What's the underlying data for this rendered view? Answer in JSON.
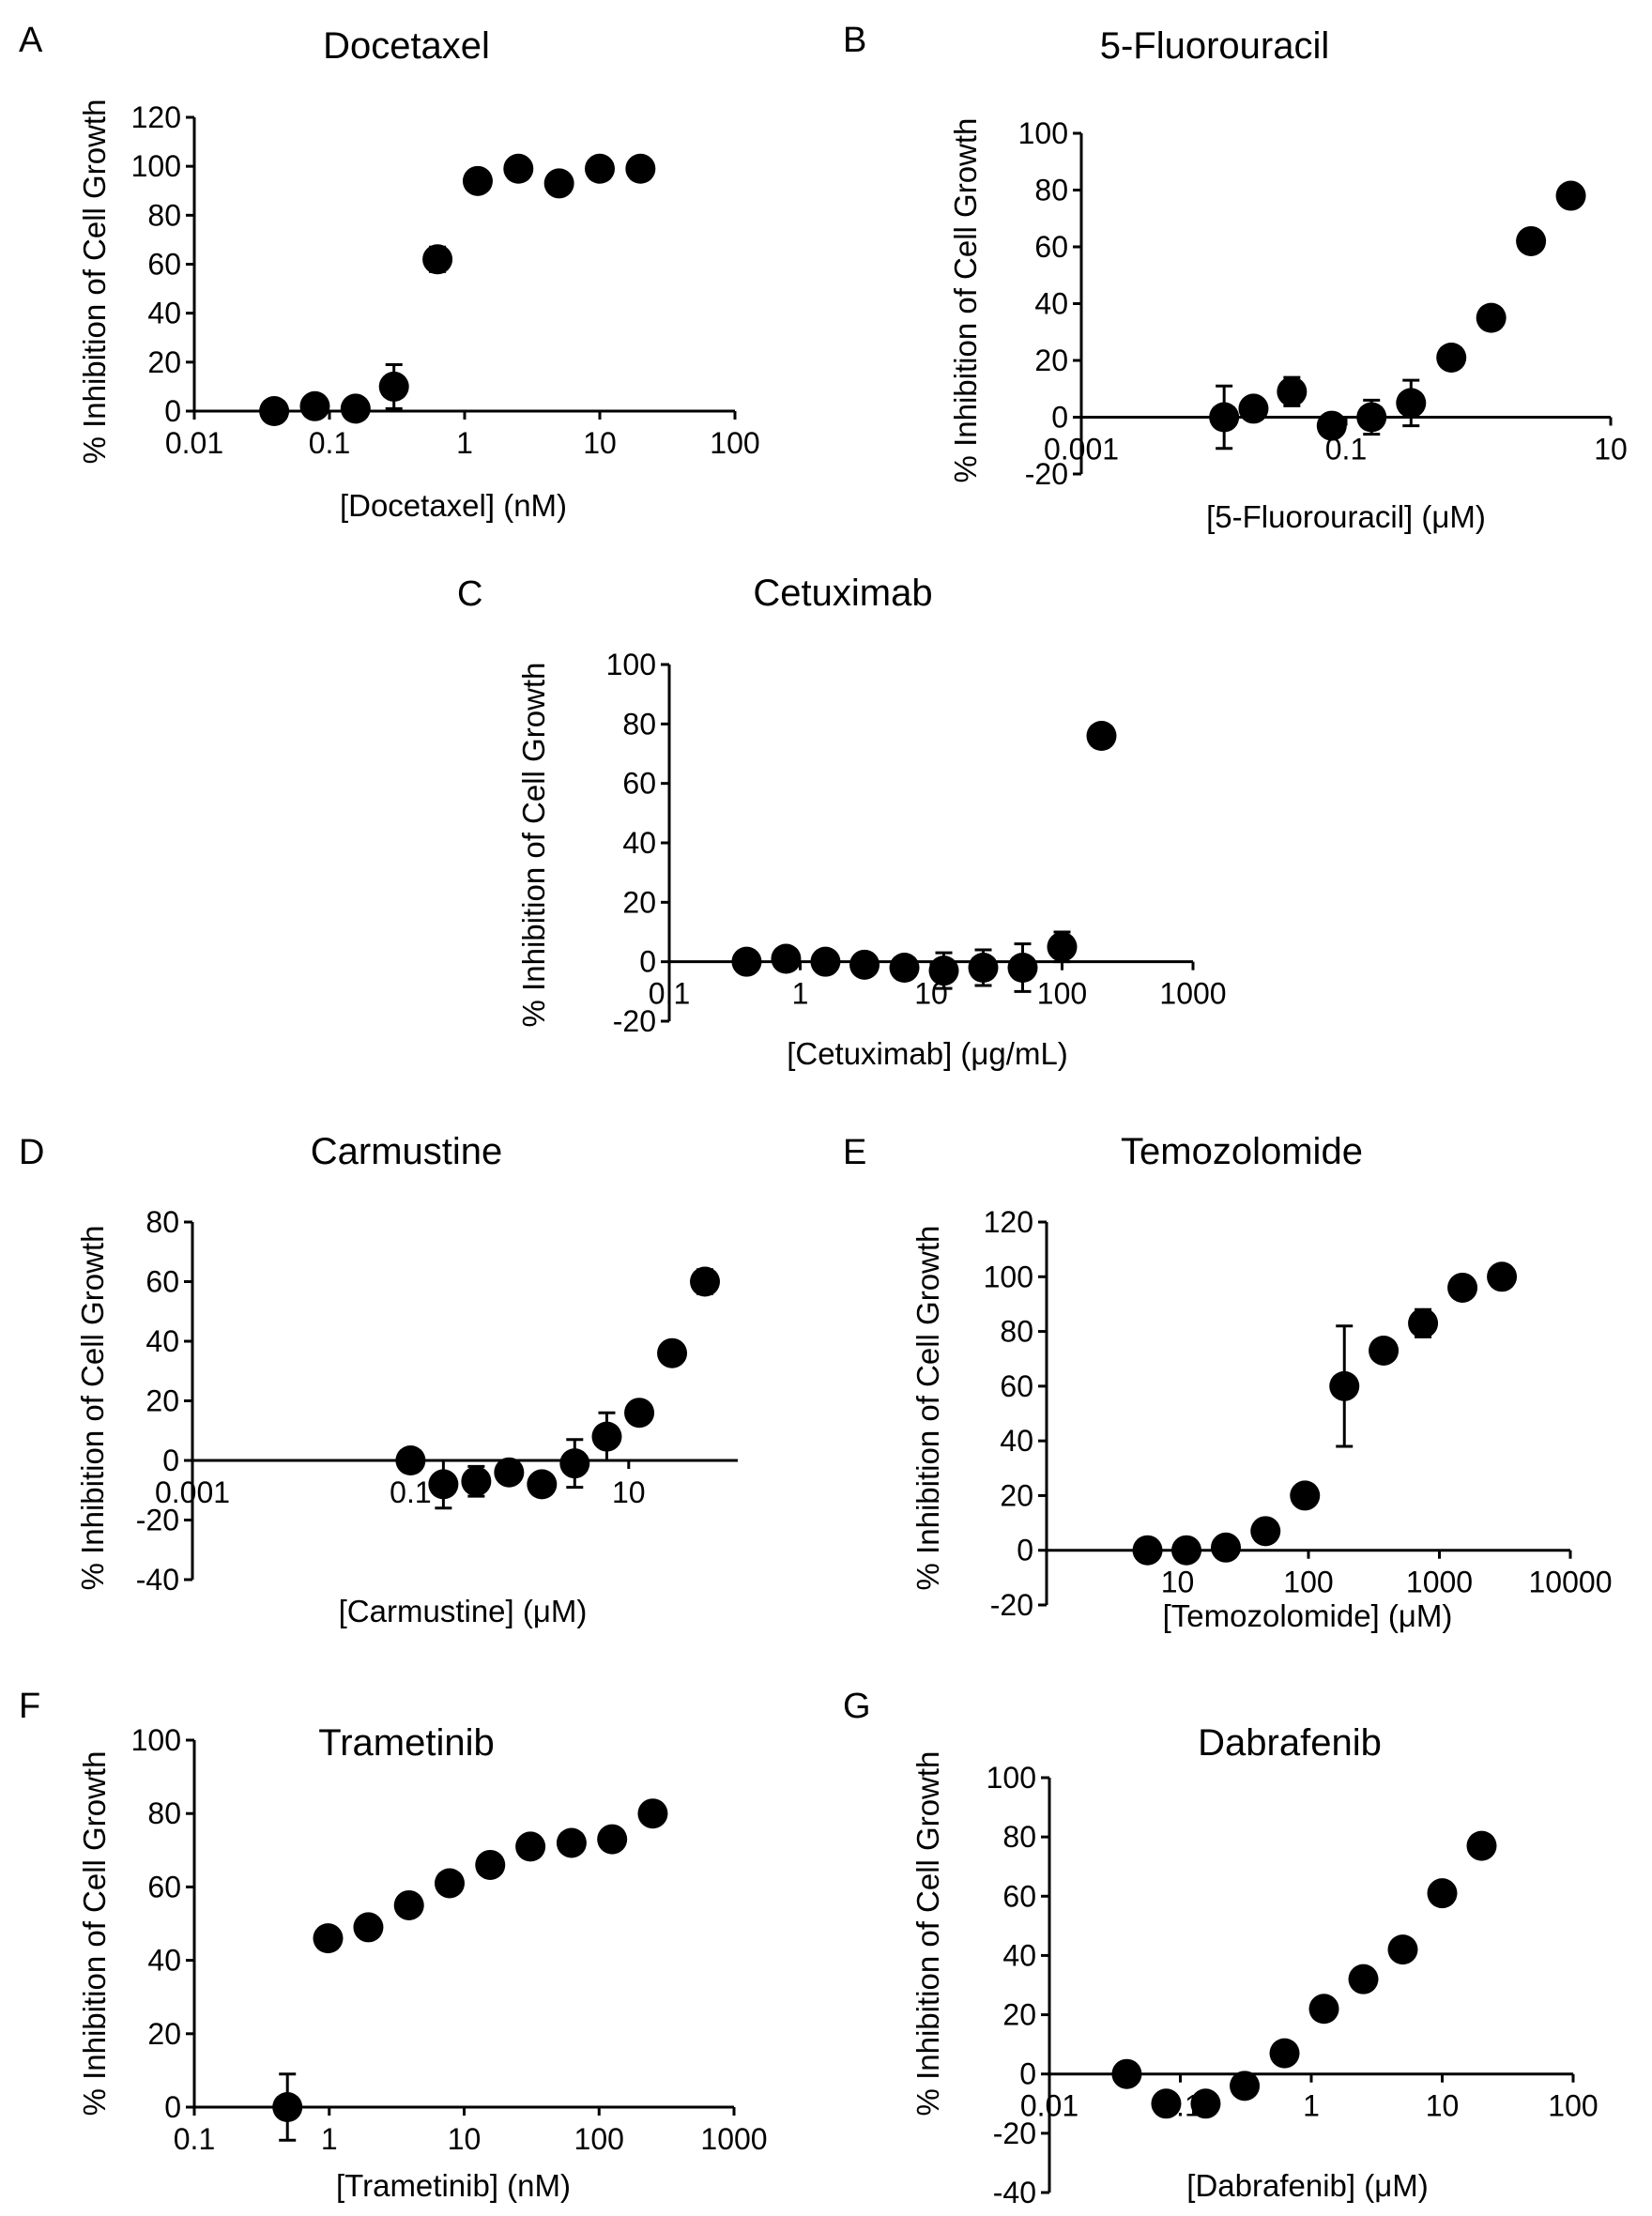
{
  "chart_data": [
    {
      "panel": "A",
      "type": "scatter",
      "title": "Docetaxel",
      "xlabel": "[Docetaxel] (nM)",
      "ylabel": "% Inhibition of Cell Growth",
      "xscale": "log",
      "xlim": [
        0.01,
        100
      ],
      "ylim": [
        0,
        120
      ],
      "xticks": [
        0.01,
        0.1,
        1,
        10,
        100
      ],
      "xtick_labels": [
        "0.01",
        "0.1",
        "1",
        "10",
        "100"
      ],
      "yticks": [
        0,
        20,
        40,
        60,
        80,
        100,
        120
      ],
      "x_axis_at_y": 0,
      "y_axis_at_x": 0.01,
      "grid": false,
      "points": [
        {
          "x": 0.039,
          "y": 0,
          "err": 0
        },
        {
          "x": 0.078,
          "y": 2,
          "err": 4
        },
        {
          "x": 0.156,
          "y": 1,
          "err": 4
        },
        {
          "x": 0.3,
          "y": 10,
          "err": 9
        },
        {
          "x": 0.63,
          "y": 62,
          "err": 5
        },
        {
          "x": 1.25,
          "y": 94,
          "err": 0
        },
        {
          "x": 2.5,
          "y": 99,
          "err": 0
        },
        {
          "x": 5,
          "y": 93,
          "err": 0
        },
        {
          "x": 10,
          "y": 99,
          "err": 0
        },
        {
          "x": 20,
          "y": 99,
          "err": 0
        }
      ]
    },
    {
      "panel": "B",
      "type": "scatter",
      "title": "5-Fluorouracil",
      "xlabel": "[5-Fluorouracil] (μM)",
      "ylabel": "% Inhibition of Cell Growth",
      "xscale": "log",
      "xlim": [
        0.001,
        10
      ],
      "ylim": [
        -20,
        100
      ],
      "xticks": [
        0.001,
        0.1,
        10
      ],
      "xtick_labels": [
        "0.001",
        "0.1",
        "10"
      ],
      "yticks": [
        -20,
        0,
        20,
        40,
        60,
        80,
        100
      ],
      "x_axis_at_y": 0,
      "y_axis_at_x": 0.001,
      "grid": false,
      "points": [
        {
          "x": 0.012,
          "y": 0,
          "err": 11
        },
        {
          "x": 0.02,
          "y": 3,
          "err": 0
        },
        {
          "x": 0.039,
          "y": 9,
          "err": 5
        },
        {
          "x": 0.078,
          "y": -3,
          "err": 0
        },
        {
          "x": 0.156,
          "y": 0,
          "err": 6
        },
        {
          "x": 0.31,
          "y": 5,
          "err": 8
        },
        {
          "x": 0.625,
          "y": 21,
          "err": 0
        },
        {
          "x": 1.25,
          "y": 35,
          "err": 0
        },
        {
          "x": 2.5,
          "y": 62,
          "err": 0
        },
        {
          "x": 5,
          "y": 78,
          "err": 0
        }
      ]
    },
    {
      "panel": "C",
      "type": "scatter",
      "title": "Cetuximab",
      "xlabel": "[Cetuximab] (μg/mL)",
      "ylabel": "% Inhibition of Cell Growth",
      "xscale": "log",
      "xlim": [
        0.1,
        1000
      ],
      "ylim": [
        -20,
        100
      ],
      "xticks": [
        0.1,
        1,
        10,
        100,
        1000
      ],
      "xtick_labels": [
        "0.1",
        "1",
        "10",
        "100",
        "1000"
      ],
      "yticks": [
        -20,
        0,
        20,
        40,
        60,
        80,
        100
      ],
      "x_axis_at_y": 0,
      "y_axis_at_x": 0.1,
      "grid": false,
      "points": [
        {
          "x": 0.39,
          "y": 0,
          "err": 0
        },
        {
          "x": 0.78,
          "y": 1,
          "err": 0
        },
        {
          "x": 1.56,
          "y": 0,
          "err": 0
        },
        {
          "x": 3.1,
          "y": -1,
          "err": 0
        },
        {
          "x": 6.25,
          "y": -2,
          "err": 0
        },
        {
          "x": 12.5,
          "y": -3,
          "err": 6
        },
        {
          "x": 25,
          "y": -2,
          "err": 6
        },
        {
          "x": 50,
          "y": -2,
          "err": 8
        },
        {
          "x": 100,
          "y": 5,
          "err": 5
        },
        {
          "x": 200,
          "y": 76,
          "err": 0
        }
      ]
    },
    {
      "panel": "D",
      "type": "scatter",
      "title": "Carmustine",
      "xlabel": "[Carmustine] (μM)",
      "ylabel": "% Inhibition of Cell Growth",
      "xscale": "log",
      "xlim": [
        0.001,
        100
      ],
      "ylim": [
        -40,
        80
      ],
      "xticks": [
        0.001,
        0.1,
        10
      ],
      "xtick_labels": [
        "0.001",
        "0.1",
        "10"
      ],
      "yticks": [
        -40,
        -20,
        0,
        20,
        40,
        60,
        80
      ],
      "x_axis_at_y": 0,
      "y_axis_at_x": 0.001,
      "grid": false,
      "points": [
        {
          "x": 0.1,
          "y": 0,
          "err": 0
        },
        {
          "x": 0.2,
          "y": -8,
          "err": 8
        },
        {
          "x": 0.4,
          "y": -7,
          "err": 5
        },
        {
          "x": 0.8,
          "y": -4,
          "err": 0
        },
        {
          "x": 1.6,
          "y": -8,
          "err": 0
        },
        {
          "x": 3.2,
          "y": -1,
          "err": 8
        },
        {
          "x": 6.3,
          "y": 8,
          "err": 8
        },
        {
          "x": 12.5,
          "y": 16,
          "err": 0
        },
        {
          "x": 25,
          "y": 36,
          "err": 0
        },
        {
          "x": 50,
          "y": 60,
          "err": 4
        }
      ]
    },
    {
      "panel": "E",
      "type": "scatter",
      "title": "Temozolomide",
      "xlabel": "[Temozolomide] (μM)",
      "ylabel": "% Inhibition of Cell Growth",
      "xscale": "log",
      "xlim": [
        1,
        10000
      ],
      "ylim": [
        -20,
        120
      ],
      "xticks": [
        1,
        10,
        100,
        1000,
        10000
      ],
      "xtick_labels": [
        "",
        "10",
        "100",
        "1000",
        "10000"
      ],
      "yticks": [
        -20,
        0,
        20,
        40,
        60,
        80,
        100,
        120
      ],
      "x_axis_at_y": 0,
      "y_axis_at_x": 1,
      "grid": false,
      "points": [
        {
          "x": 5.9,
          "y": 0,
          "err": 0
        },
        {
          "x": 11.7,
          "y": 0,
          "err": 0
        },
        {
          "x": 23.4,
          "y": 1,
          "err": 0
        },
        {
          "x": 47,
          "y": 7,
          "err": 0
        },
        {
          "x": 94,
          "y": 20,
          "err": 0
        },
        {
          "x": 188,
          "y": 60,
          "err": 22
        },
        {
          "x": 375,
          "y": 73,
          "err": 0
        },
        {
          "x": 750,
          "y": 83,
          "err": 5
        },
        {
          "x": 1500,
          "y": 96,
          "err": 0
        },
        {
          "x": 3000,
          "y": 100,
          "err": 0
        }
      ]
    },
    {
      "panel": "F",
      "type": "scatter",
      "title": "Trametinib",
      "xlabel": "[Trametinib] (nM)",
      "ylabel": "% Inhibition of Cell Growth",
      "xscale": "log",
      "xlim": [
        0.1,
        1000
      ],
      "ylim": [
        0,
        100
      ],
      "xticks": [
        0.1,
        1,
        10,
        100,
        1000
      ],
      "xtick_labels": [
        "0.1",
        "1",
        "10",
        "100",
        "1000"
      ],
      "yticks": [
        0,
        20,
        40,
        60,
        80,
        100
      ],
      "x_axis_at_y": 0,
      "y_axis_at_x": 0.1,
      "grid": false,
      "points": [
        {
          "x": 0.49,
          "y": 0,
          "err": 9
        },
        {
          "x": 0.98,
          "y": 46,
          "err": 0
        },
        {
          "x": 1.95,
          "y": 49,
          "err": 0
        },
        {
          "x": 3.9,
          "y": 55,
          "err": 0
        },
        {
          "x": 7.8,
          "y": 61,
          "err": 0
        },
        {
          "x": 15.6,
          "y": 66,
          "err": 0
        },
        {
          "x": 31,
          "y": 71,
          "err": 0
        },
        {
          "x": 62.5,
          "y": 72,
          "err": 0
        },
        {
          "x": 125,
          "y": 73,
          "err": 0
        },
        {
          "x": 250,
          "y": 80,
          "err": 0
        }
      ]
    },
    {
      "panel": "G",
      "type": "scatter",
      "title": "Dabrafenib",
      "xlabel": "[Dabrafenib] (μM)",
      "ylabel": "% Inhibition of Cell Growth",
      "xscale": "log",
      "xlim": [
        0.01,
        100
      ],
      "ylim": [
        -40,
        100
      ],
      "xticks": [
        0.01,
        0.1,
        1,
        10,
        100
      ],
      "xtick_labels": [
        "0.01",
        "0.1",
        "1",
        "10",
        "100"
      ],
      "yticks": [
        -40,
        -20,
        0,
        20,
        40,
        60,
        80,
        100
      ],
      "x_axis_at_y": 0,
      "y_axis_at_x": 0.01,
      "grid": false,
      "points": [
        {
          "x": 0.039,
          "y": 0,
          "err": 0
        },
        {
          "x": 0.078,
          "y": -10,
          "err": 0
        },
        {
          "x": 0.156,
          "y": -10,
          "err": 0
        },
        {
          "x": 0.31,
          "y": -4,
          "err": 0
        },
        {
          "x": 0.625,
          "y": 7,
          "err": 0
        },
        {
          "x": 1.25,
          "y": 22,
          "err": 0
        },
        {
          "x": 2.5,
          "y": 32,
          "err": 0
        },
        {
          "x": 5,
          "y": 42,
          "err": 0
        },
        {
          "x": 10,
          "y": 61,
          "err": 0
        },
        {
          "x": 20,
          "y": 77,
          "err": 0
        }
      ]
    }
  ]
}
